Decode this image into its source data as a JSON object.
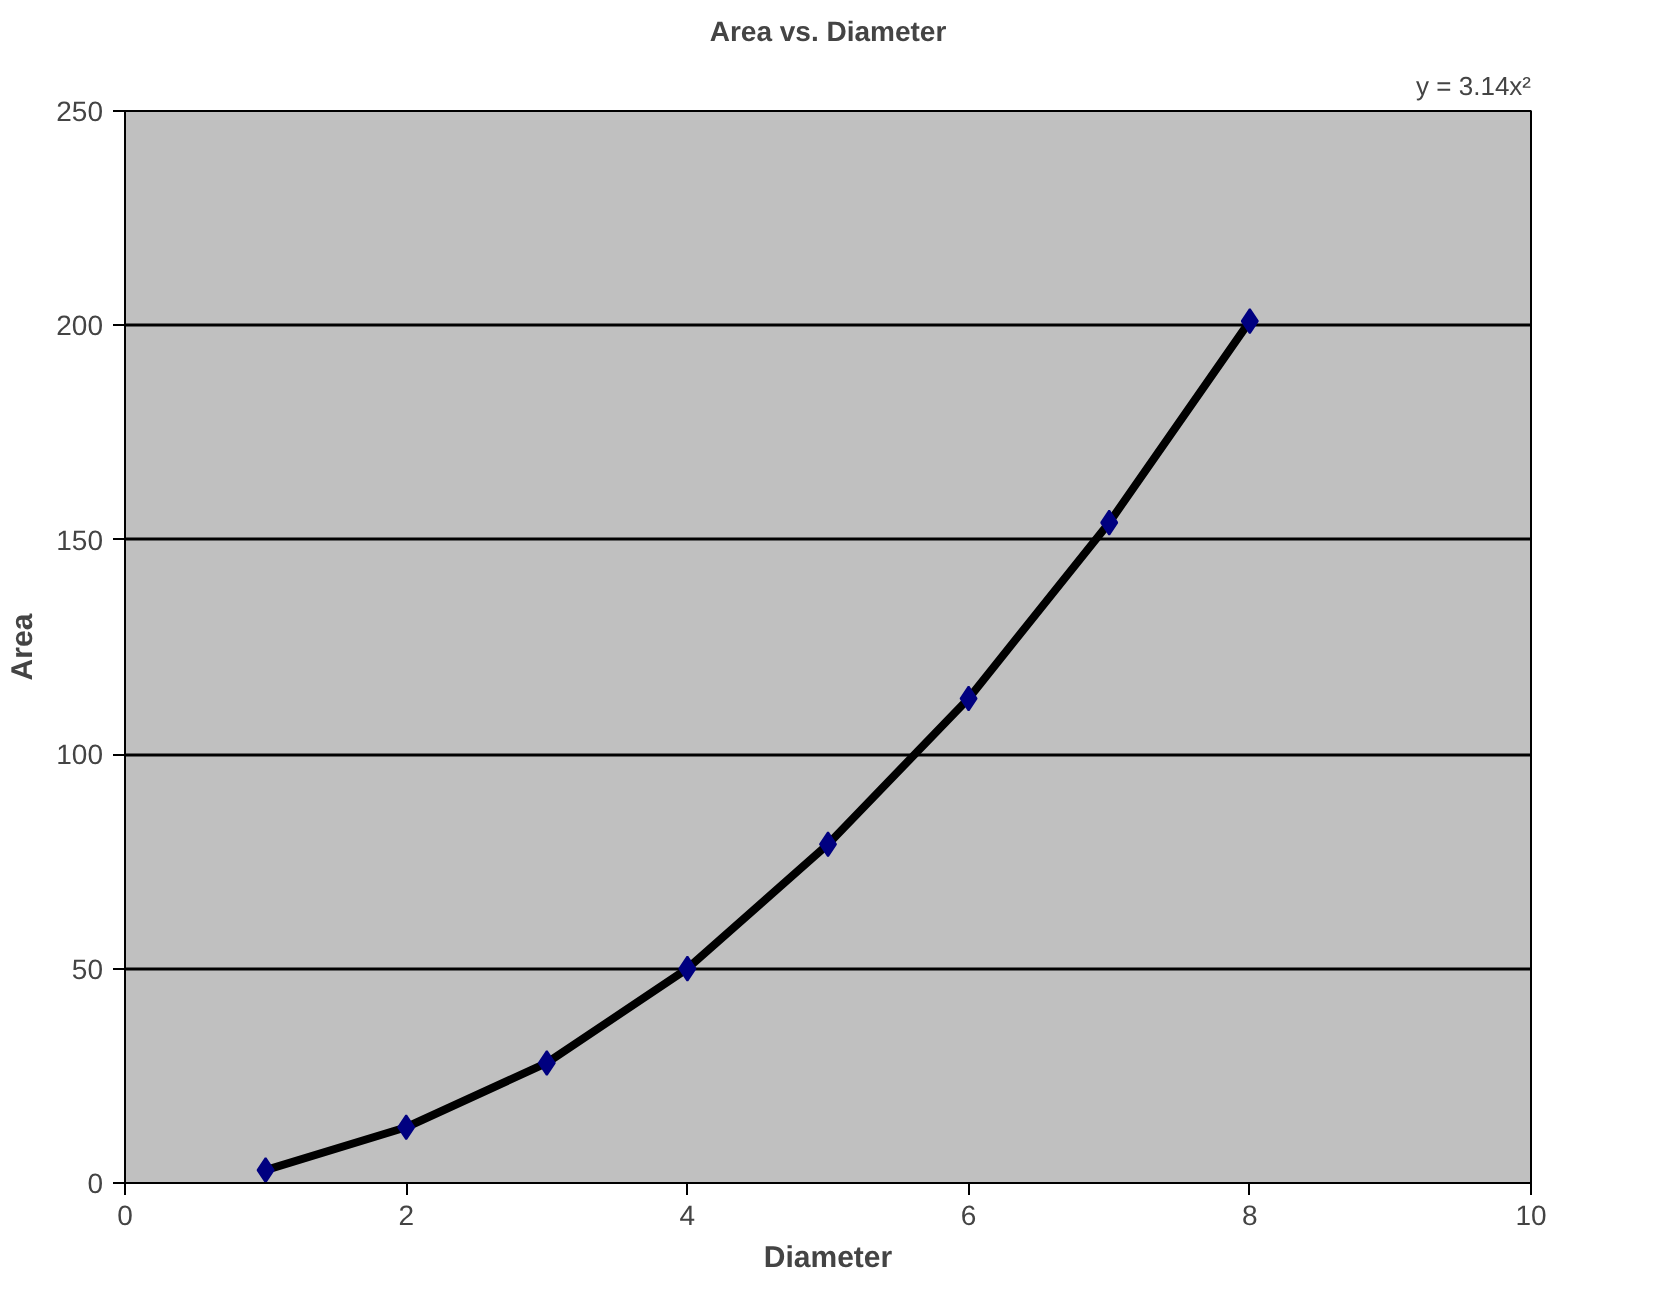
{
  "chart_data": {
    "type": "scatter",
    "title": "Area vs. Diameter",
    "xlabel": "Diameter",
    "ylabel": "Area",
    "annotations": [
      "y = 3.14x²"
    ],
    "x": [
      1,
      2,
      3,
      4,
      5,
      6,
      7,
      8
    ],
    "series": [
      {
        "color": "#000080",
        "marker": "diamond",
        "values": [
          3,
          13,
          28,
          50,
          79,
          113,
          154,
          201
        ]
      },
      {
        "type": "line",
        "color": "#000000",
        "marker": "none",
        "x": [
          1,
          2,
          3,
          4,
          5,
          6,
          7,
          8
        ],
        "values": [
          3,
          13,
          28,
          50,
          79,
          113,
          154,
          201
        ]
      }
    ],
    "xlim": [
      0,
      10
    ],
    "xticks": [
      0,
      2,
      4,
      6,
      8,
      10
    ],
    "ylim": [
      0,
      250
    ],
    "yticks": [
      0,
      50,
      100,
      150,
      200,
      250
    ],
    "grid": "y"
  }
}
